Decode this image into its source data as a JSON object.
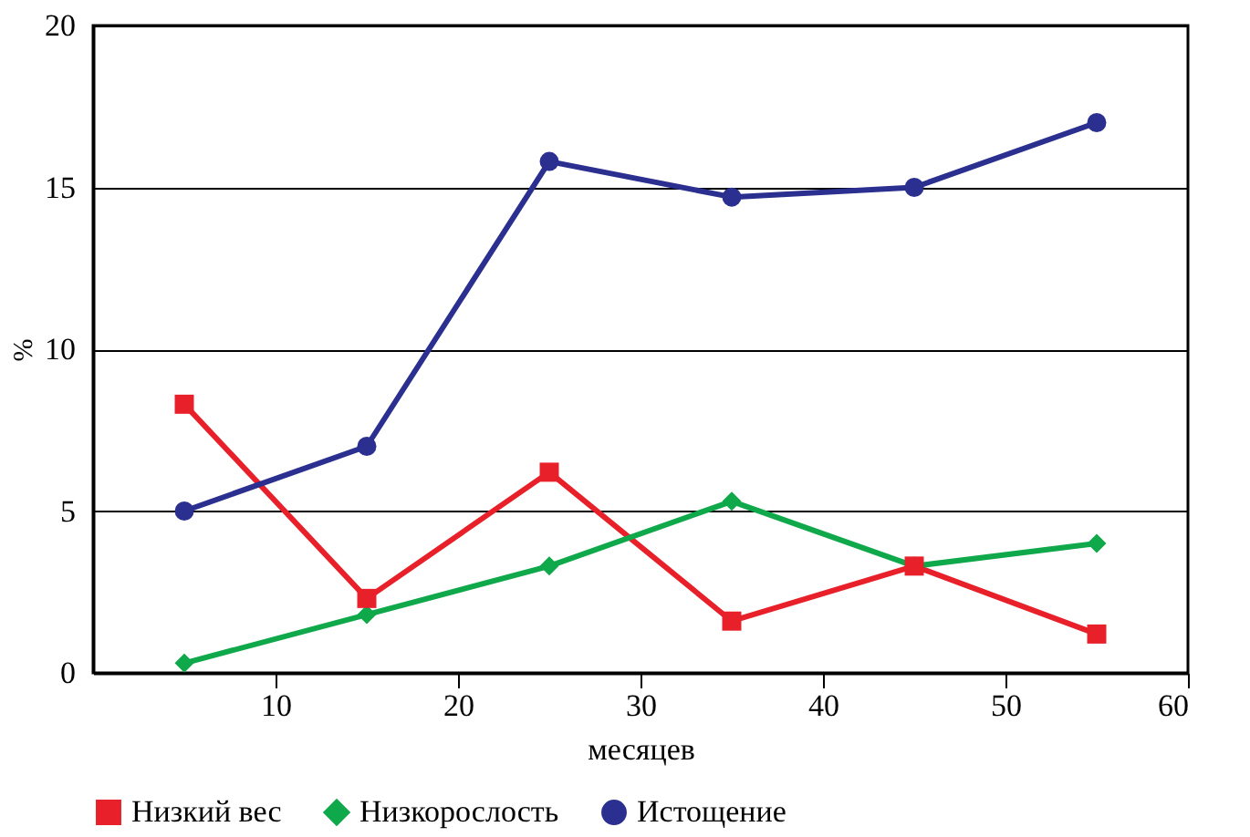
{
  "chart_data": {
    "type": "line",
    "xlabel": "месяцев",
    "ylabel": "%",
    "x": [
      5,
      15,
      25,
      35,
      45,
      55
    ],
    "series": [
      {
        "name": "Низкий вес",
        "color": "#e8202a",
        "marker": "square",
        "values": [
          8.3,
          2.3,
          6.2,
          1.6,
          3.3,
          1.2
        ]
      },
      {
        "name": "Низкорослость",
        "color": "#0fa84a",
        "marker": "diamond",
        "values": [
          0.3,
          1.8,
          3.3,
          5.3,
          3.3,
          4.0
        ]
      },
      {
        "name": "Истощение",
        "color": "#2b2f8f",
        "marker": "circle",
        "values": [
          5.0,
          7.0,
          15.8,
          14.7,
          15.0,
          17.0
        ]
      }
    ],
    "xlim": [
      0,
      60
    ],
    "xticks": [
      10,
      20,
      30,
      40,
      50,
      60
    ],
    "ylim": [
      0,
      20
    ],
    "yticks": [
      0,
      5,
      10,
      15,
      20
    ],
    "grid": "y",
    "legend": "bottom",
    "line_style": "solid"
  }
}
